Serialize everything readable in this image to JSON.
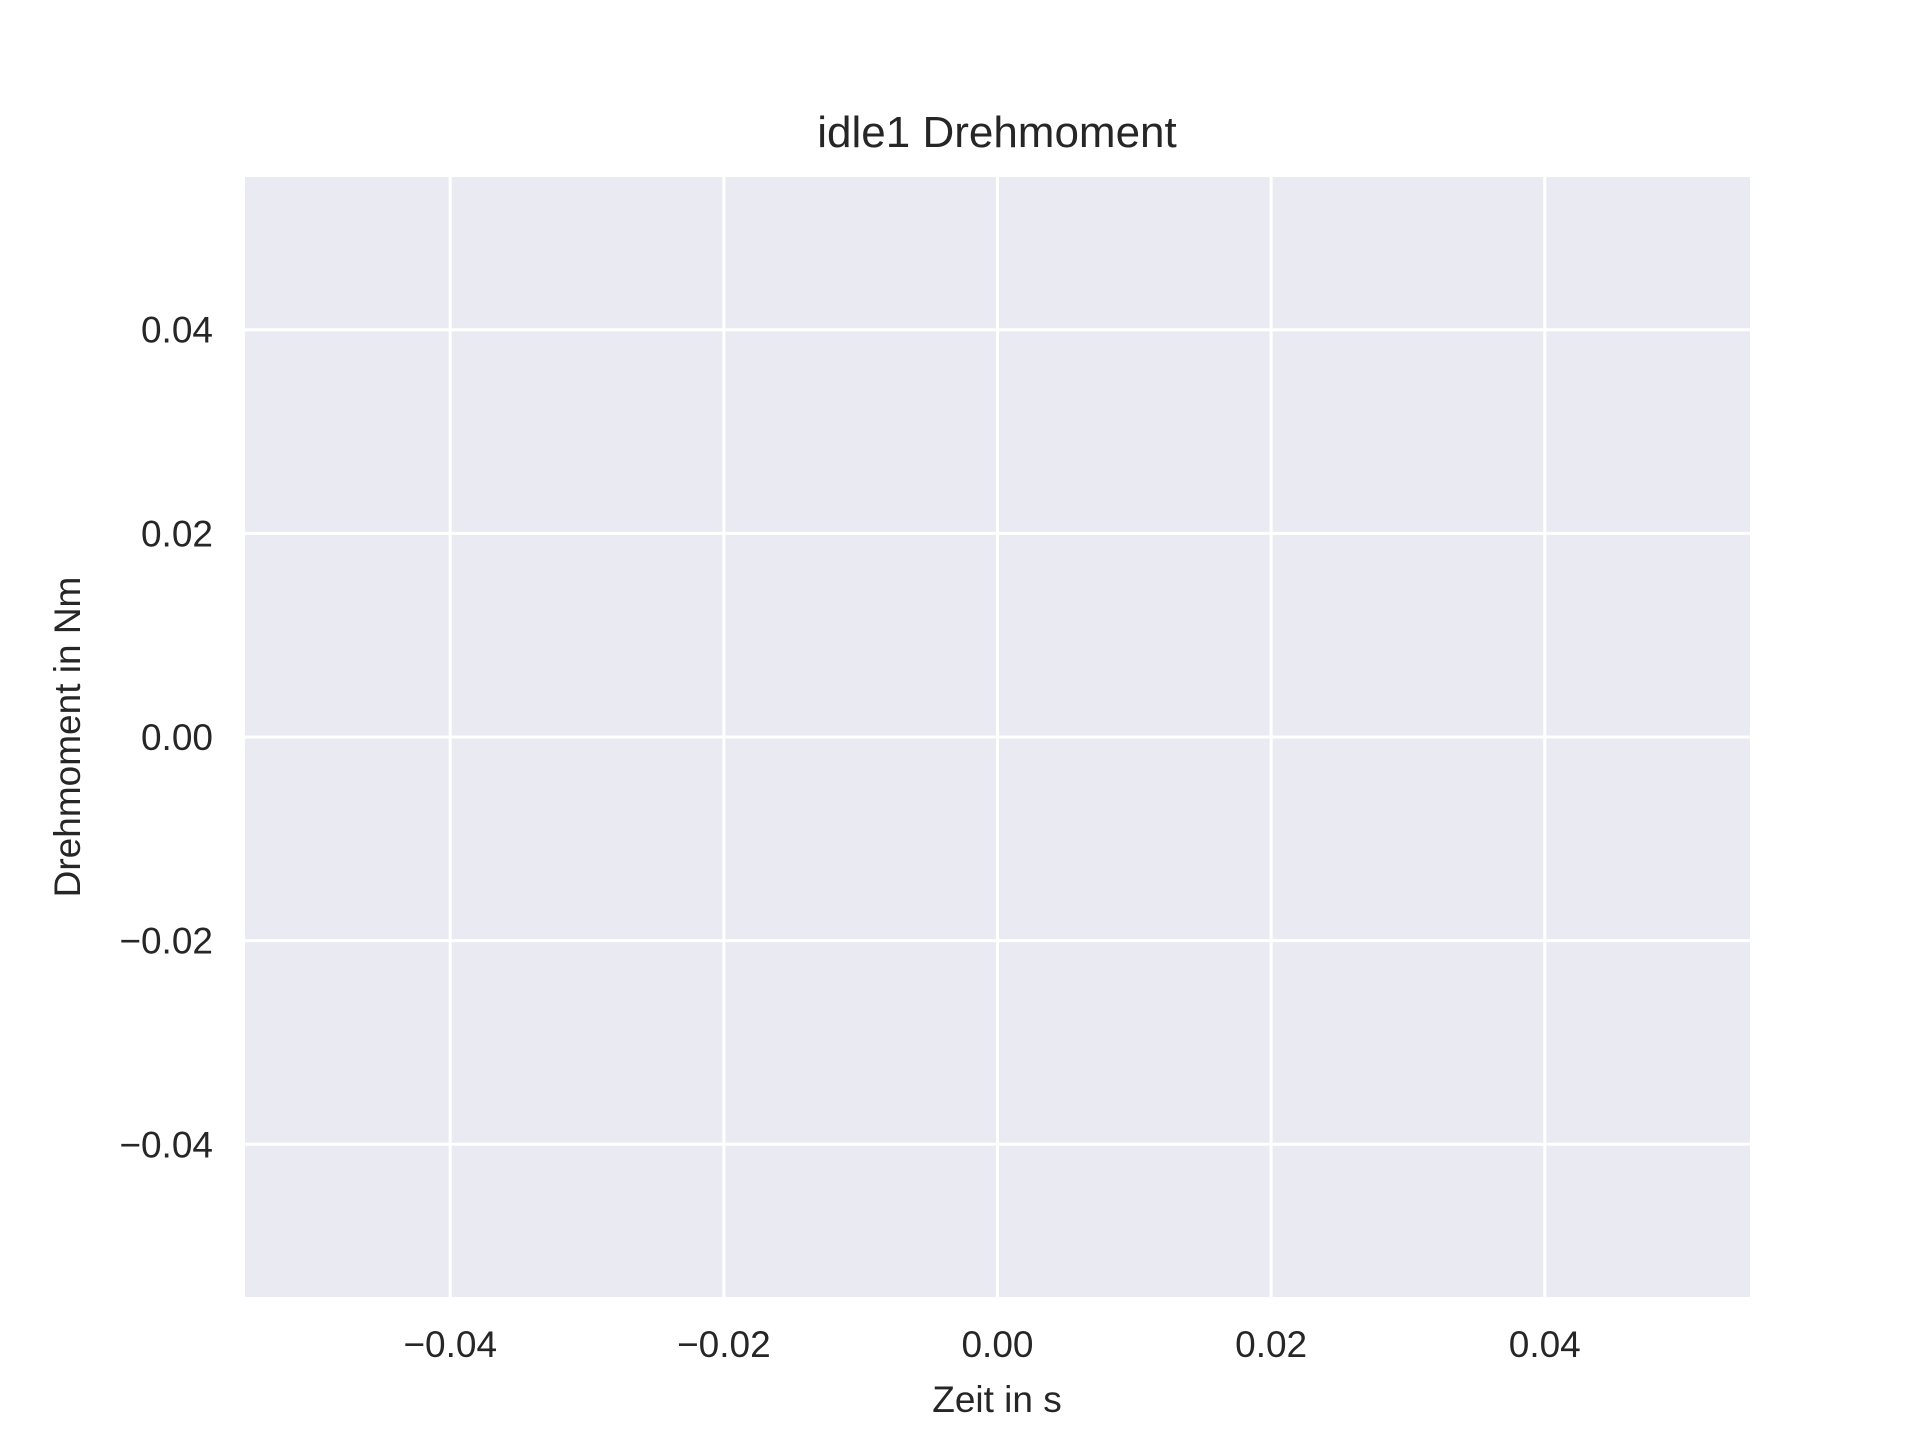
{
  "chart_data": {
    "type": "line",
    "title": "idle1 Drehmoment",
    "xlabel": "Zeit in s",
    "ylabel": "Drehmoment in Nm",
    "xlim": [
      -0.055,
      0.055
    ],
    "ylim": [
      -0.055,
      0.055
    ],
    "x_ticks": [
      -0.04,
      -0.02,
      0.0,
      0.02,
      0.04
    ],
    "x_tick_labels": [
      "−0.04",
      "−0.02",
      "0.00",
      "0.02",
      "0.04"
    ],
    "y_ticks": [
      0.04,
      0.02,
      0.0,
      -0.02,
      -0.04
    ],
    "y_tick_labels": [
      "0.04",
      "0.02",
      "0.00",
      "−0.02",
      "−0.04"
    ],
    "series": [],
    "grid": true,
    "colors": {
      "plot_background": "#eaeaf2",
      "grid": "#ffffff",
      "text": "#262626"
    }
  }
}
